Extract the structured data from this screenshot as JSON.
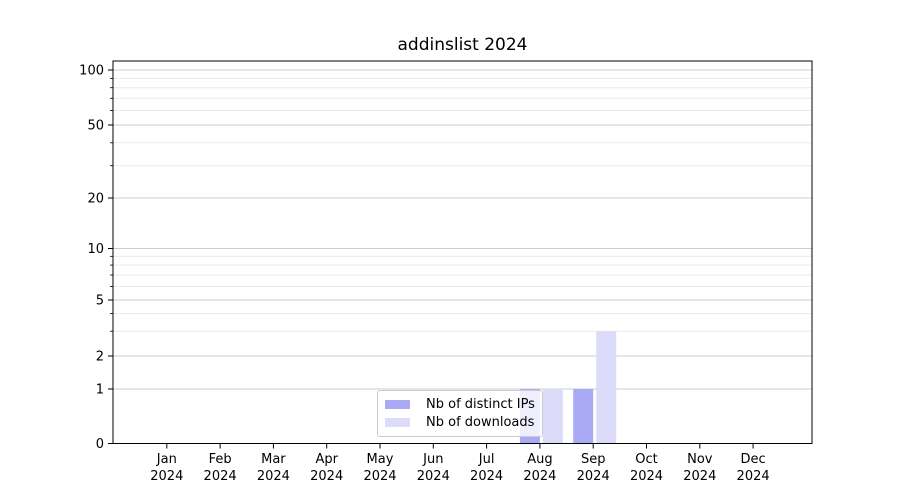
{
  "chart_data": {
    "type": "bar",
    "title": "addinslist 2024",
    "xlabel": "",
    "ylabel": "",
    "categories": [
      "Jan 2024",
      "Feb 2024",
      "Mar 2024",
      "Apr 2024",
      "May 2024",
      "Jun 2024",
      "Jul 2024",
      "Aug 2024",
      "Sep 2024",
      "Oct 2024",
      "Nov 2024",
      "Dec 2024"
    ],
    "series": [
      {
        "name": "Nb of distinct IPs",
        "color": "#a9a9f5",
        "values": [
          0,
          0,
          0,
          0,
          0,
          0,
          0,
          1,
          1,
          0,
          0,
          0
        ]
      },
      {
        "name": "Nb of downloads",
        "color": "#dcdcfa",
        "values": [
          0,
          0,
          0,
          0,
          0,
          0,
          0,
          1,
          3,
          0,
          0,
          0
        ]
      }
    ],
    "yaxis": {
      "scale": "log-like (compressed near zero)",
      "ticks": [
        0,
        1,
        2,
        5,
        10,
        20,
        50,
        100
      ],
      "minor_gridlines": [
        3,
        4,
        6,
        7,
        8,
        9,
        30,
        40,
        60,
        70,
        80,
        90
      ],
      "ylim": [
        0,
        100
      ]
    },
    "grid": true,
    "legend": {
      "position": "inside-bottom-center"
    },
    "colors": {
      "bar_distinct_ips": "#a9a9f5",
      "bar_downloads": "#dcdcfa",
      "grid_major": "#cccccc",
      "grid_minor": "#eaeaea",
      "axis": "#000000",
      "legend_border": "#cccccc"
    }
  }
}
